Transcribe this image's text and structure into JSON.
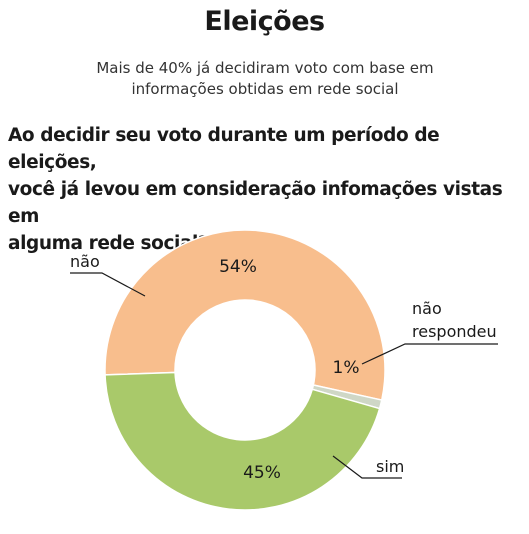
{
  "header": {
    "title": "Eleições",
    "subtitle_line1": "Mais de 40% já decidiram voto com base em",
    "subtitle_line2": "informações obtidas em rede social"
  },
  "question": {
    "line1": "Ao decidir seu voto durante um período de eleições,",
    "line2": "você já levou em consideração infomações vistas em",
    "line3": "alguma rede social?"
  },
  "chart_data": {
    "type": "pie",
    "donut": true,
    "slices": [
      {
        "label": "não",
        "value": 54,
        "value_label": "54%",
        "color": "#f8be8d"
      },
      {
        "label": "não respondeu",
        "value": 1,
        "value_label": "1%",
        "color": "#cfd7c6"
      },
      {
        "label": "sim",
        "value": 45,
        "value_label": "45%",
        "color": "#a9c96a"
      }
    ],
    "legend_labels": {
      "nao": "não",
      "nao_respondeu_line1": "não",
      "nao_respondeu_line2": "respondeu",
      "sim": "sim"
    }
  }
}
